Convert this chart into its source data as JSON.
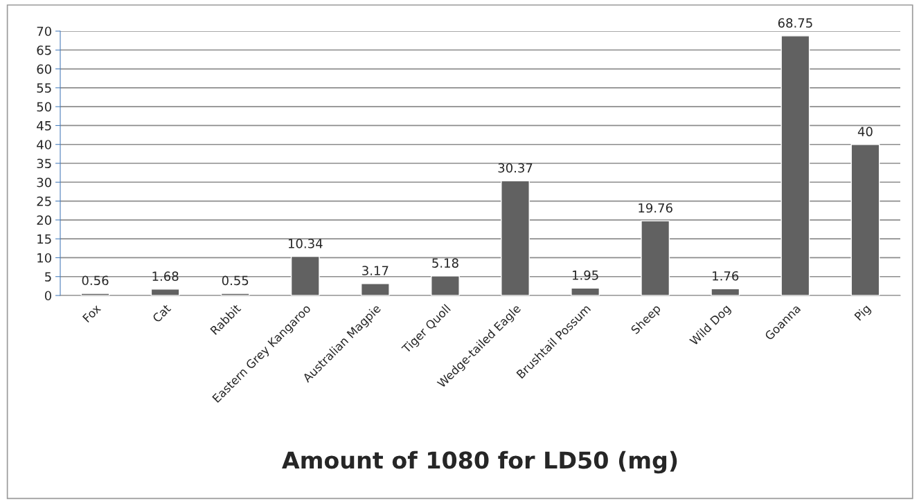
{
  "chart_data": {
    "type": "bar",
    "title": "Amount of 1080 for LD50 (mg)",
    "categories": [
      "Fox",
      "Cat",
      "Rabbit",
      "Eastern Grey Kangaroo",
      "Australian Magpie",
      "Tiger Quoll",
      "Wedge-tailed Eagle",
      "Brushtail Possum",
      "Sheep",
      "Wild Dog",
      "Goanna",
      "Pig"
    ],
    "values": [
      0.56,
      1.68,
      0.55,
      10.34,
      3.17,
      5.18,
      30.37,
      1.95,
      19.76,
      1.76,
      68.75,
      40
    ],
    "color": "#616161",
    "ylim": [
      0,
      70
    ],
    "yticks": [
      0,
      5,
      10,
      15,
      20,
      25,
      30,
      35,
      40,
      45,
      50,
      55,
      60,
      65,
      70
    ],
    "grid": "y",
    "data_labels": true,
    "legend": false
  }
}
